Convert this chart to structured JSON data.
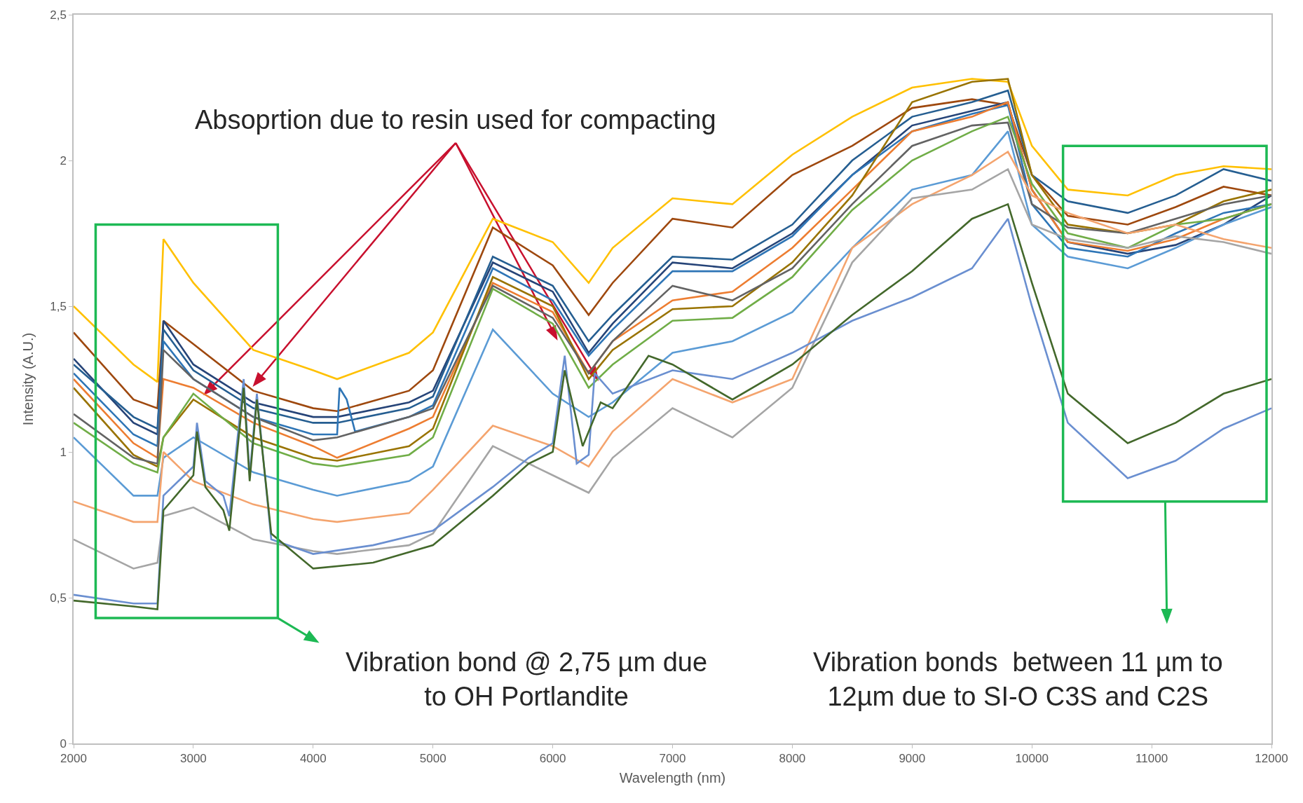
{
  "chart_data": {
    "type": "line",
    "xlabel": "Wavelength (nm)",
    "ylabel": "Intensity (A.U.)",
    "xlim": [
      2000,
      12000
    ],
    "xticks": [
      2000,
      3000,
      4000,
      5000,
      6000,
      7000,
      8000,
      9000,
      10000,
      11000,
      12000
    ],
    "ylim": [
      0,
      2.5
    ],
    "yticks": [
      0,
      {
        "value": 0.5,
        "label": "0,5"
      },
      1,
      {
        "value": 1.5,
        "label": "1,5"
      },
      2,
      {
        "value": 2.5,
        "label": "2,5"
      }
    ],
    "x": [
      2000,
      2500,
      2700,
      2750,
      3000,
      3500,
      4000,
      4200,
      4800,
      5000,
      5500,
      6000,
      6300,
      6500,
      7000,
      7500,
      8000,
      8500,
      9000,
      9500,
      9800,
      10000,
      10300,
      10800,
      11200,
      11600,
      12000
    ],
    "series": [
      {
        "color": "#ffc000",
        "values": [
          1.5,
          1.3,
          1.24,
          1.73,
          1.58,
          1.35,
          1.28,
          1.25,
          1.34,
          1.41,
          1.8,
          1.72,
          1.58,
          1.7,
          1.87,
          1.85,
          2.02,
          2.15,
          2.25,
          2.28,
          2.27,
          2.05,
          1.9,
          1.88,
          1.95,
          1.98,
          1.97
        ]
      },
      {
        "color": "#9e480e",
        "values": [
          1.41,
          1.18,
          1.15,
          1.45,
          1.37,
          1.21,
          1.15,
          1.14,
          1.21,
          1.28,
          1.77,
          1.64,
          1.47,
          1.58,
          1.8,
          1.77,
          1.95,
          2.05,
          2.18,
          2.21,
          2.19,
          1.95,
          1.81,
          1.78,
          1.84,
          1.91,
          1.88
        ]
      },
      {
        "color": "#264478",
        "values": [
          1.32,
          1.1,
          1.06,
          1.45,
          1.3,
          1.17,
          1.12,
          1.12,
          1.17,
          1.21,
          1.65,
          1.55,
          1.34,
          1.44,
          1.65,
          1.63,
          1.75,
          1.95,
          2.12,
          2.17,
          2.2,
          1.9,
          1.72,
          1.68,
          1.71,
          1.78,
          1.88
        ]
      },
      {
        "color": "#255e91",
        "values": [
          1.3,
          1.12,
          1.08,
          1.42,
          1.28,
          1.15,
          1.1,
          1.1,
          1.15,
          1.19,
          1.67,
          1.57,
          1.38,
          1.47,
          1.67,
          1.66,
          1.78,
          2.0,
          2.15,
          2.2,
          2.24,
          1.95,
          1.86,
          1.82,
          1.88,
          1.97,
          1.93
        ]
      },
      {
        "color": "#2e75b6",
        "x": [
          2000,
          2500,
          2700,
          2750,
          3000,
          3500,
          4000,
          4200,
          4220,
          4280,
          4350,
          4800,
          5000,
          5500,
          6000,
          6300,
          6500,
          7000,
          7500,
          8000,
          8500,
          9000,
          9500,
          9800,
          10000,
          10300,
          10800,
          11200,
          11600,
          12000
        ],
        "values": [
          1.27,
          1.06,
          1.02,
          1.38,
          1.25,
          1.12,
          1.06,
          1.06,
          1.22,
          1.18,
          1.07,
          1.12,
          1.16,
          1.63,
          1.52,
          1.33,
          1.42,
          1.62,
          1.62,
          1.74,
          1.95,
          2.1,
          2.16,
          2.19,
          1.85,
          1.7,
          1.67,
          1.75,
          1.82,
          1.85
        ]
      },
      {
        "color": "#ed7d31",
        "values": [
          1.25,
          1.03,
          0.98,
          1.25,
          1.22,
          1.1,
          1.02,
          0.98,
          1.08,
          1.12,
          1.58,
          1.48,
          1.27,
          1.38,
          1.52,
          1.55,
          1.7,
          1.9,
          2.1,
          2.15,
          2.2,
          1.9,
          1.72,
          1.69,
          1.73,
          1.8,
          1.85
        ]
      },
      {
        "color": "#997300",
        "values": [
          1.22,
          0.99,
          0.95,
          1.05,
          1.18,
          1.05,
          0.98,
          0.97,
          1.02,
          1.08,
          1.6,
          1.5,
          1.25,
          1.35,
          1.49,
          1.5,
          1.65,
          1.88,
          2.2,
          2.27,
          2.28,
          1.95,
          1.78,
          1.75,
          1.78,
          1.86,
          1.9
        ]
      },
      {
        "color": "#636363",
        "values": [
          1.13,
          0.98,
          0.96,
          1.35,
          1.25,
          1.12,
          1.04,
          1.05,
          1.12,
          1.15,
          1.57,
          1.46,
          1.27,
          1.38,
          1.57,
          1.52,
          1.63,
          1.85,
          2.05,
          2.12,
          2.13,
          1.85,
          1.77,
          1.75,
          1.8,
          1.85,
          1.88
        ]
      },
      {
        "color": "#70ad47",
        "values": [
          1.1,
          0.96,
          0.93,
          1.05,
          1.2,
          1.03,
          0.96,
          0.95,
          0.99,
          1.05,
          1.56,
          1.44,
          1.22,
          1.3,
          1.45,
          1.46,
          1.6,
          1.83,
          2.0,
          2.1,
          2.15,
          1.92,
          1.75,
          1.7,
          1.78,
          1.8,
          1.85
        ]
      },
      {
        "color": "#5b9bd5",
        "values": [
          1.05,
          0.85,
          0.85,
          0.98,
          1.05,
          0.93,
          0.87,
          0.85,
          0.9,
          0.95,
          1.42,
          1.2,
          1.12,
          1.17,
          1.34,
          1.38,
          1.48,
          1.7,
          1.9,
          1.95,
          2.1,
          1.78,
          1.67,
          1.63,
          1.7,
          1.78,
          1.84
        ]
      },
      {
        "color": "#f4a46e",
        "values": [
          0.83,
          0.76,
          0.76,
          1.0,
          0.9,
          0.82,
          0.77,
          0.76,
          0.79,
          0.87,
          1.09,
          1.02,
          0.95,
          1.07,
          1.25,
          1.17,
          1.25,
          1.7,
          1.85,
          1.95,
          2.03,
          1.88,
          1.82,
          1.75,
          1.78,
          1.73,
          1.7
        ]
      },
      {
        "color": "#a5a5a5",
        "values": [
          0.7,
          0.6,
          0.62,
          0.78,
          0.81,
          0.7,
          0.66,
          0.65,
          0.68,
          0.72,
          1.02,
          0.92,
          0.86,
          0.98,
          1.15,
          1.05,
          1.22,
          1.65,
          1.87,
          1.9,
          1.97,
          1.78,
          1.73,
          1.7,
          1.74,
          1.72,
          1.68
        ]
      },
      {
        "color": "#6a8fd0",
        "x": [
          2000,
          2500,
          2700,
          2750,
          3000,
          3030,
          3100,
          3250,
          3300,
          3420,
          3470,
          3530,
          3650,
          4000,
          4500,
          5000,
          5500,
          5800,
          6000,
          6100,
          6200,
          6300,
          6350,
          6500,
          7000,
          7500,
          8000,
          8500,
          9000,
          9500,
          9800,
          10000,
          10300,
          10800,
          11200,
          11600,
          12000
        ],
        "values": [
          0.51,
          0.48,
          0.48,
          0.85,
          0.95,
          1.1,
          0.9,
          0.85,
          0.78,
          1.25,
          0.92,
          1.2,
          0.7,
          0.65,
          0.68,
          0.73,
          0.88,
          0.98,
          1.03,
          1.33,
          0.96,
          0.99,
          1.27,
          1.2,
          1.28,
          1.25,
          1.34,
          1.45,
          1.53,
          1.63,
          1.8,
          1.5,
          1.1,
          0.91,
          0.97,
          1.08,
          1.15
        ]
      },
      {
        "color": "#43682b",
        "x": [
          2000,
          2500,
          2700,
          2750,
          3000,
          3030,
          3100,
          3250,
          3300,
          3420,
          3470,
          3530,
          3650,
          4000,
          4500,
          5000,
          5500,
          5800,
          6000,
          6100,
          6250,
          6400,
          6500,
          6800,
          7000,
          7500,
          8000,
          8500,
          9000,
          9500,
          9800,
          10000,
          10300,
          10800,
          11200,
          11600,
          12000
        ],
        "values": [
          0.49,
          0.47,
          0.46,
          0.8,
          0.92,
          1.07,
          0.88,
          0.8,
          0.73,
          1.22,
          0.9,
          1.18,
          0.72,
          0.6,
          0.62,
          0.68,
          0.85,
          0.96,
          1.0,
          1.28,
          1.02,
          1.17,
          1.15,
          1.33,
          1.3,
          1.18,
          1.3,
          1.47,
          1.62,
          1.8,
          1.85,
          1.58,
          1.2,
          1.03,
          1.1,
          1.2,
          1.25
        ]
      }
    ],
    "annotations": [
      "Absoprtion due to resin used for compacting",
      "Vibration bond @ 2,75 µm due\nto OH Portlandite",
      "Vibration bonds  between 11 µm to\n12µm due to SI-O C3S and C2S"
    ]
  }
}
